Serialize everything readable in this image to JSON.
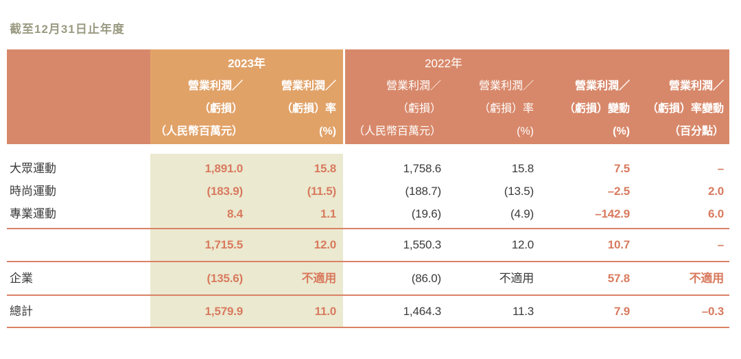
{
  "title": "截至12月31日止年度",
  "colors": {
    "header_dark_salmon": "#d8886a",
    "header_light_orange": "#e1a268",
    "highlight_beige": "#ebe9d0",
    "accent_orange_text": "#d87a5e",
    "rule_salmon": "#d98164",
    "body_dark_text": "#3a3a3a",
    "title_olive": "#9a9a82",
    "header_text_white": "#ffffff"
  },
  "table": {
    "header": {
      "year_2023": "2023年",
      "year_2022": "2022年",
      "columns": [
        {
          "lines": [
            "營業利潤／",
            "（虧損）",
            "（人民幣百萬元）"
          ]
        },
        {
          "lines": [
            "營業利潤／",
            "（虧損）率",
            "(%)"
          ]
        },
        {
          "lines": [
            "營業利潤／",
            "（虧損）",
            "（人民幣百萬元）"
          ]
        },
        {
          "lines": [
            "營業利潤／",
            "（虧損）率",
            "(%)"
          ]
        },
        {
          "lines": [
            "營業利潤／",
            "（虧損）變動",
            "(%)"
          ]
        },
        {
          "lines": [
            "營業利潤／",
            "（虧損）率變動",
            "（百分點）"
          ]
        }
      ]
    },
    "rows": [
      {
        "cells": [
          "大眾運動",
          "1,891.0",
          "15.8",
          "1,758.6",
          "15.8",
          "7.5",
          "–"
        ]
      },
      {
        "cells": [
          "時尚運動",
          "(183.9)",
          "(11.5)",
          "(188.7)",
          "(13.5)",
          "–2.5",
          "2.0"
        ]
      },
      {
        "cells": [
          "專業運動",
          "8.4",
          "1.1",
          "(19.6)",
          "(4.9)",
          "–142.9",
          "6.0"
        ]
      },
      {
        "cells": [
          "",
          "1,715.5",
          "12.0",
          "1,550.3",
          "12.0",
          "10.7",
          "–"
        ]
      },
      {
        "cells": [
          "企業",
          "(135.6)",
          "不適用",
          "(86.0)",
          "不適用",
          "57.8",
          "不適用"
        ]
      },
      {
        "cells": [
          "總計",
          "1,579.9",
          "11.0",
          "1,464.3",
          "11.3",
          "7.9",
          "–0.3"
        ]
      }
    ]
  }
}
